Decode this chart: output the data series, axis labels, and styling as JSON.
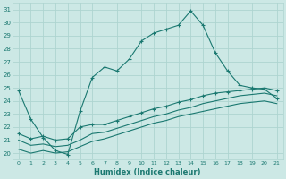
{
  "xlabel": "Humidex (Indice chaleur)",
  "xlim": [
    -0.5,
    21.5
  ],
  "ylim": [
    19.5,
    31.5
  ],
  "xticks": [
    0,
    1,
    2,
    3,
    4,
    5,
    6,
    7,
    8,
    9,
    10,
    11,
    12,
    13,
    14,
    15,
    16,
    17,
    18,
    19,
    20,
    21
  ],
  "yticks": [
    20,
    21,
    22,
    23,
    24,
    25,
    26,
    27,
    28,
    29,
    30,
    31
  ],
  "bg_color": "#cce8e5",
  "grid_color": "#aed4d0",
  "line_color": "#1a7870",
  "line1_x": [
    0,
    1,
    2,
    3,
    4,
    5,
    6,
    7,
    8,
    9,
    10,
    11,
    12,
    13,
    14,
    15,
    16,
    17,
    18,
    19,
    20,
    21
  ],
  "line1_y": [
    24.8,
    22.6,
    21.2,
    20.2,
    19.9,
    23.2,
    25.8,
    26.6,
    26.3,
    27.2,
    28.6,
    29.2,
    29.5,
    29.8,
    30.9,
    29.8,
    27.7,
    26.3,
    25.2,
    25.0,
    24.9,
    24.2
  ],
  "line2_x": [
    0,
    1,
    2,
    3,
    4,
    5,
    6,
    7,
    8,
    9,
    10,
    11,
    12,
    13,
    14,
    15,
    16,
    17,
    18,
    19,
    20,
    21
  ],
  "line2_y": [
    21.5,
    21.1,
    21.3,
    21.0,
    21.1,
    22.0,
    22.2,
    22.2,
    22.5,
    22.8,
    23.1,
    23.4,
    23.6,
    23.9,
    24.1,
    24.4,
    24.6,
    24.7,
    24.8,
    24.9,
    25.0,
    24.8
  ],
  "line3_x": [
    0,
    1,
    2,
    3,
    4,
    5,
    6,
    7,
    8,
    9,
    10,
    11,
    12,
    13,
    14,
    15,
    16,
    17,
    18,
    19,
    20,
    21
  ],
  "line3_y": [
    21.0,
    20.6,
    20.7,
    20.5,
    20.6,
    21.0,
    21.5,
    21.6,
    21.9,
    22.2,
    22.5,
    22.8,
    23.0,
    23.3,
    23.5,
    23.8,
    24.0,
    24.2,
    24.4,
    24.5,
    24.6,
    24.4
  ],
  "line4_x": [
    0,
    1,
    2,
    3,
    4,
    5,
    6,
    7,
    8,
    9,
    10,
    11,
    12,
    13,
    14,
    15,
    16,
    17,
    18,
    19,
    20,
    21
  ],
  "line4_y": [
    20.3,
    20.0,
    20.2,
    20.0,
    20.1,
    20.5,
    20.9,
    21.1,
    21.4,
    21.7,
    22.0,
    22.3,
    22.5,
    22.8,
    23.0,
    23.2,
    23.4,
    23.6,
    23.8,
    23.9,
    24.0,
    23.8
  ]
}
